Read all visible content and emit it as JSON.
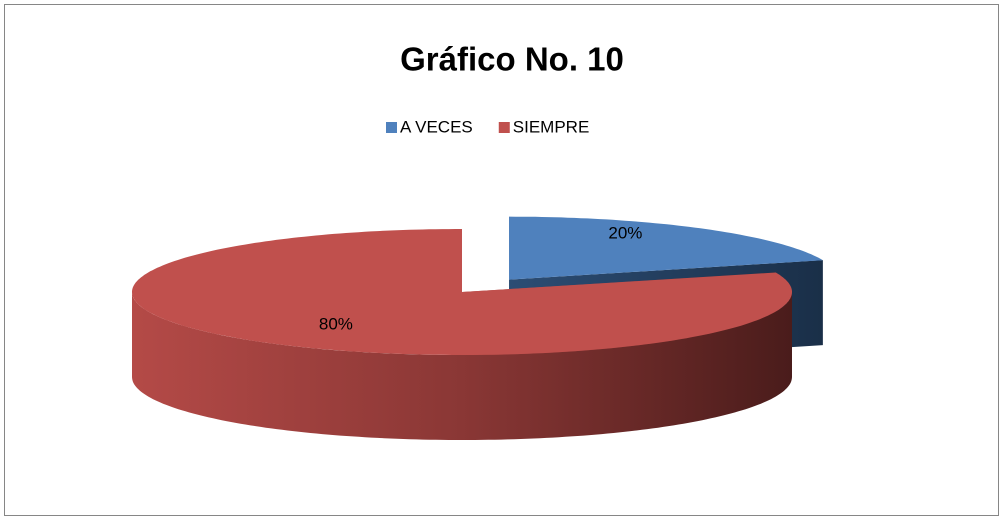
{
  "chart_data": {
    "type": "pie",
    "title": "Gráfico No. 10",
    "categories": [
      "A VECES",
      "SIEMPRE"
    ],
    "values": [
      20,
      80
    ],
    "value_labels": [
      "20%",
      "80%"
    ],
    "colors": [
      "#4f81bd",
      "#c0504d"
    ],
    "legend": "top"
  }
}
